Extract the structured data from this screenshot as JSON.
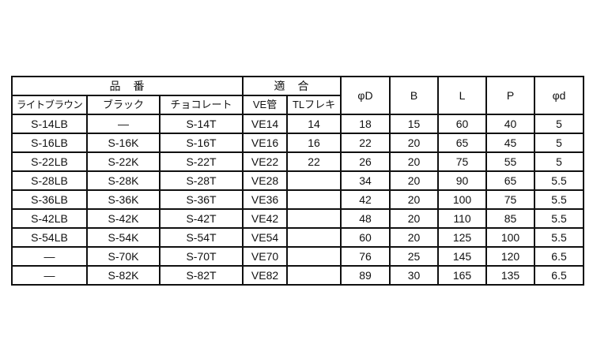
{
  "table": {
    "group_headers": [
      {
        "label": "品　番",
        "span": 3
      },
      {
        "label": "適　合",
        "span": 2
      }
    ],
    "sub_headers": [
      "ライトブラウン",
      "ブラック",
      "チョコレート",
      "VE管",
      "TLフレキ"
    ],
    "spec_headers": [
      "φD",
      "B",
      "L",
      "P",
      "φd"
    ],
    "rows": [
      [
        "S-14LB",
        "—",
        "S-14T",
        "VE14",
        "14",
        "18",
        "15",
        "60",
        "40",
        "5"
      ],
      [
        "S-16LB",
        "S-16K",
        "S-16T",
        "VE16",
        "16",
        "22",
        "20",
        "65",
        "45",
        "5"
      ],
      [
        "S-22LB",
        "S-22K",
        "S-22T",
        "VE22",
        "22",
        "26",
        "20",
        "75",
        "55",
        "5"
      ],
      [
        "S-28LB",
        "S-28K",
        "S-28T",
        "VE28",
        "",
        "34",
        "20",
        "90",
        "65",
        "5.5"
      ],
      [
        "S-36LB",
        "S-36K",
        "S-36T",
        "VE36",
        "",
        "42",
        "20",
        "100",
        "75",
        "5.5"
      ],
      [
        "S-42LB",
        "S-42K",
        "S-42T",
        "VE42",
        "",
        "48",
        "20",
        "110",
        "85",
        "5.5"
      ],
      [
        "S-54LB",
        "S-54K",
        "S-54T",
        "VE54",
        "",
        "60",
        "20",
        "125",
        "100",
        "5.5"
      ],
      [
        "—",
        "S-70K",
        "S-70T",
        "VE70",
        "",
        "76",
        "25",
        "145",
        "120",
        "6.5"
      ],
      [
        "—",
        "S-82K",
        "S-82T",
        "VE82",
        "",
        "89",
        "30",
        "165",
        "135",
        "6.5"
      ]
    ],
    "colors": {
      "border": "#101010",
      "text": "#111111",
      "background": "#ffffff"
    }
  }
}
